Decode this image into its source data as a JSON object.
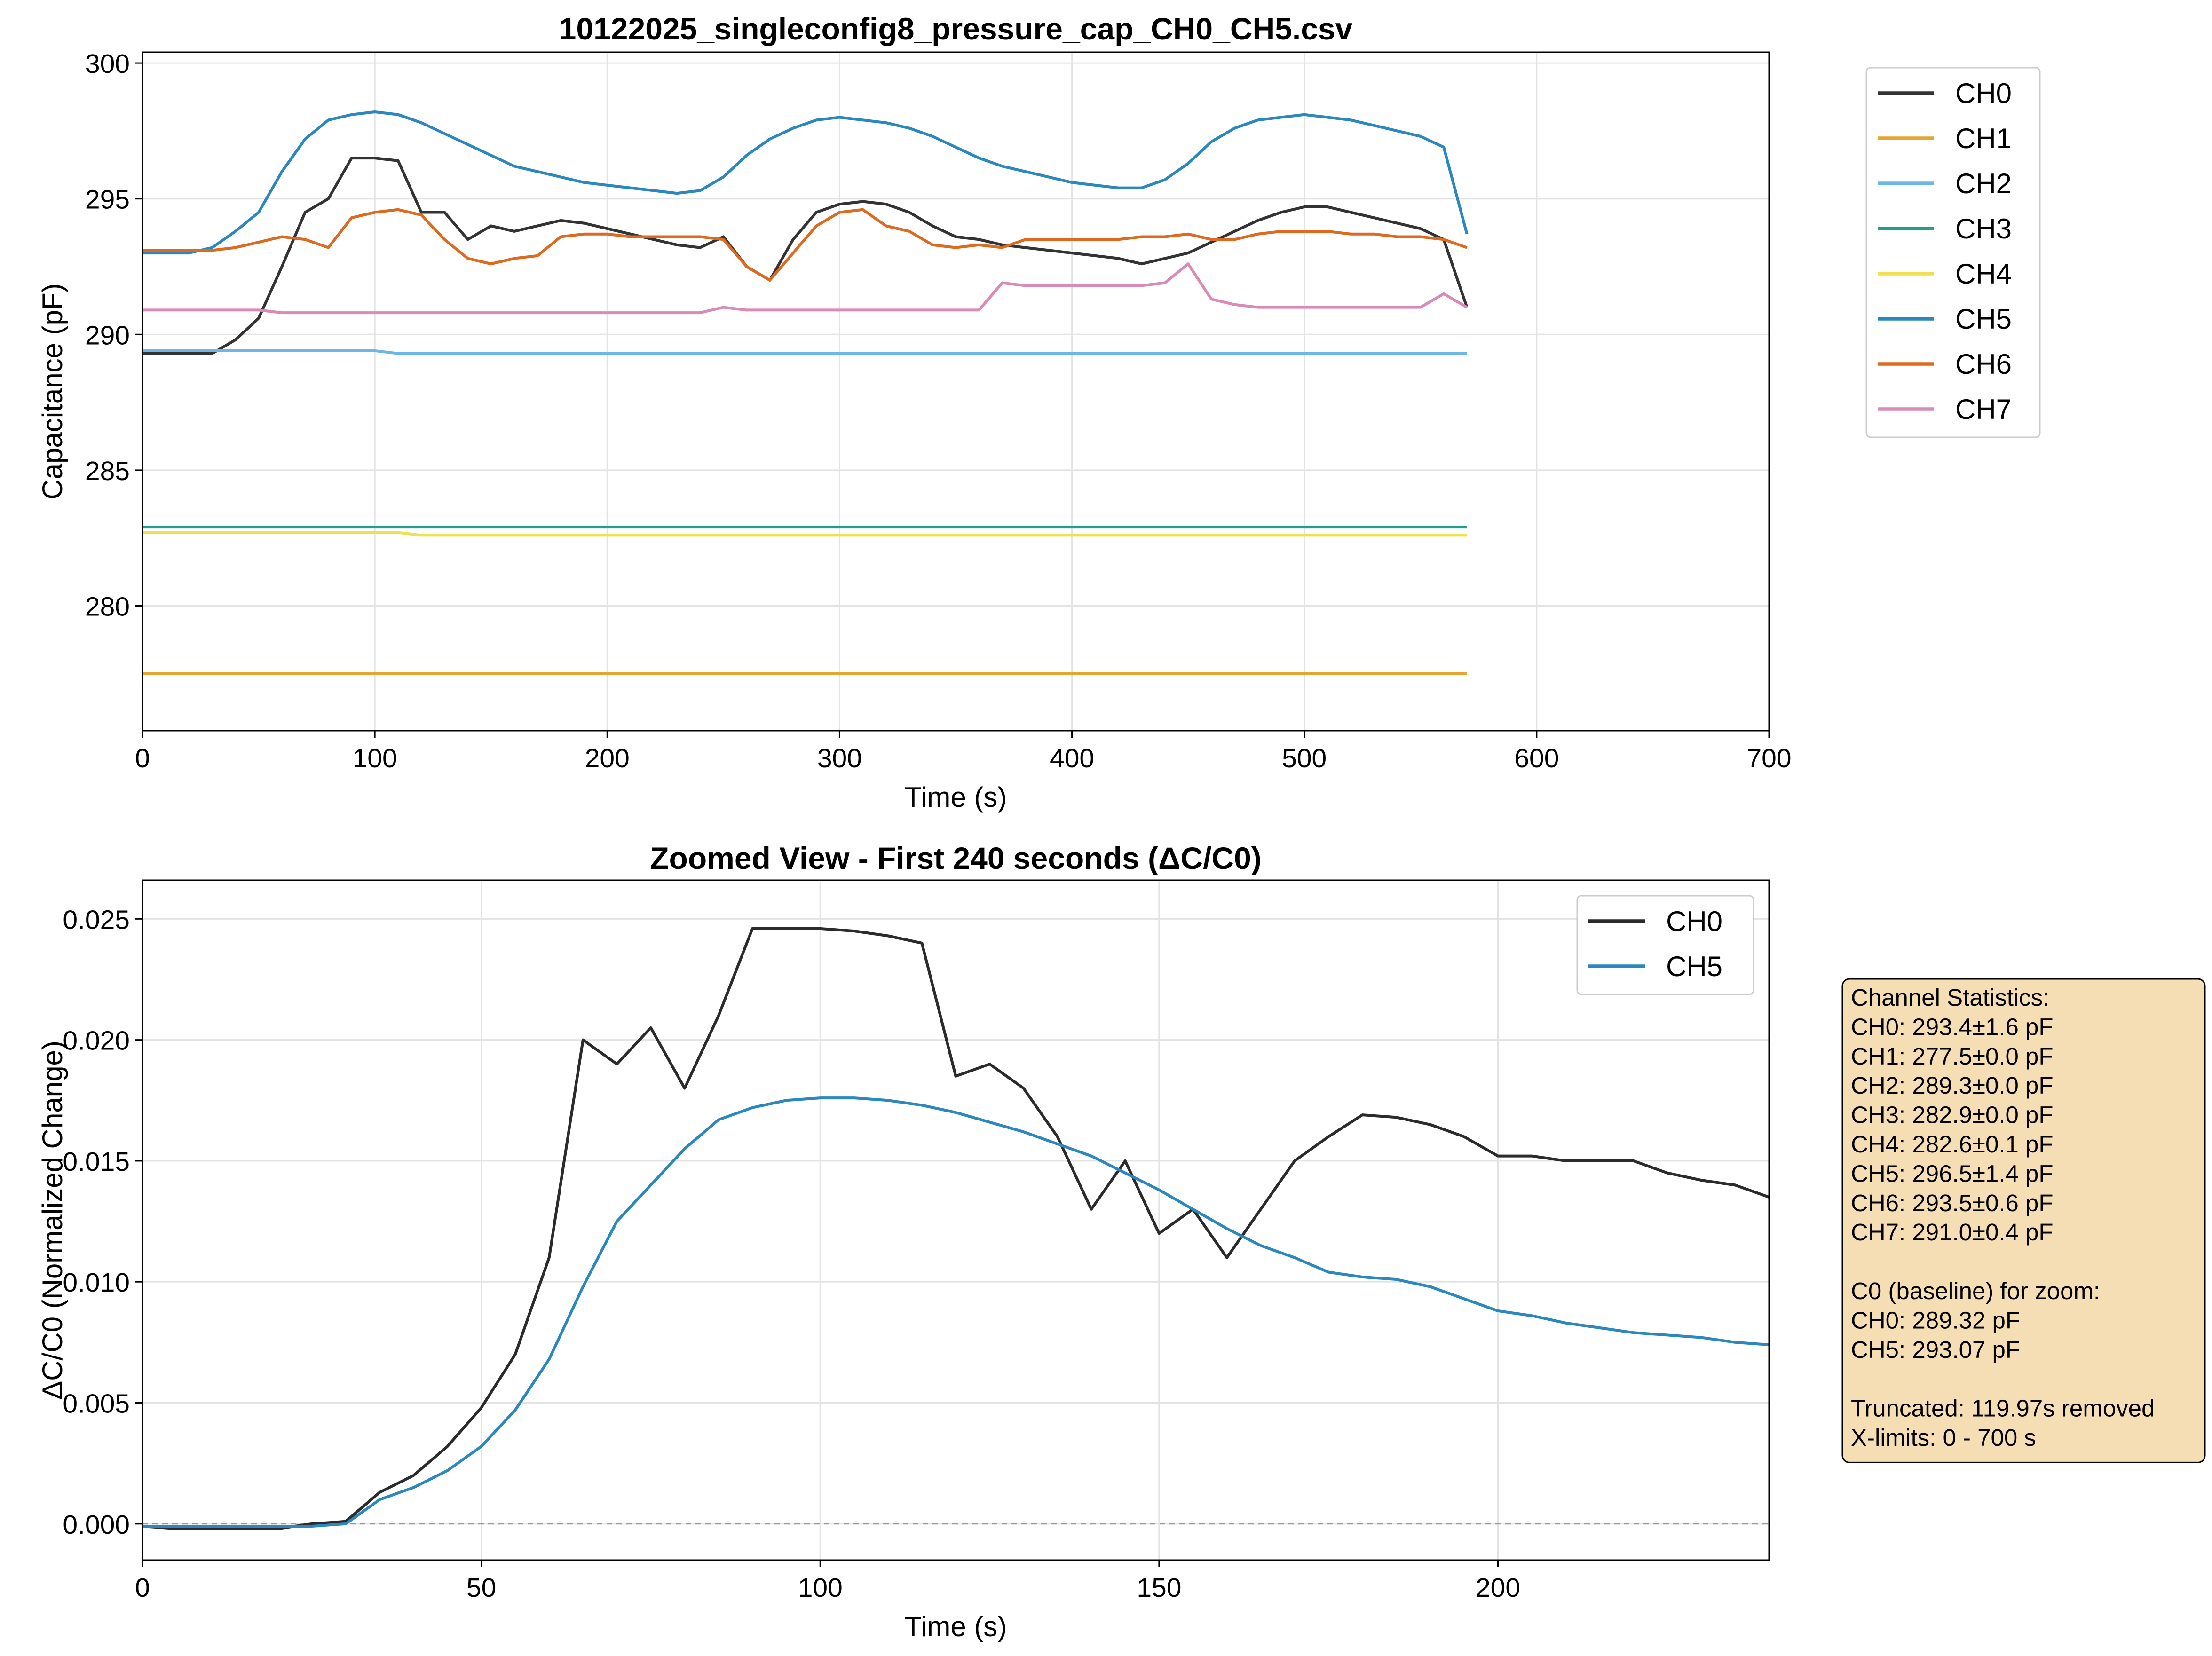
{
  "chart_data": [
    {
      "type": "line",
      "title": "10122025_singleconfig8_pressure_cap_CH0_CH5.csv",
      "xlabel": "Time (s)",
      "ylabel": "Capacitance (pF)",
      "xlim": [
        0,
        700
      ],
      "ylim": [
        275.4,
        300.4
      ],
      "xticks": [
        0,
        100,
        200,
        300,
        400,
        500,
        600,
        700
      ],
      "yticks": [
        280,
        285,
        290,
        295,
        300
      ],
      "grid": true,
      "legend": "outside upper right",
      "x": [
        0,
        10,
        20,
        30,
        40,
        50,
        60,
        70,
        80,
        90,
        100,
        110,
        120,
        130,
        140,
        150,
        160,
        170,
        180,
        190,
        200,
        210,
        220,
        230,
        240,
        250,
        260,
        270,
        280,
        290,
        300,
        310,
        320,
        330,
        340,
        350,
        360,
        370,
        380,
        390,
        400,
        410,
        420,
        430,
        440,
        450,
        460,
        470,
        480,
        490,
        500,
        510,
        520,
        530,
        540,
        550,
        560,
        570
      ],
      "series": [
        {
          "name": "CH0",
          "color": "#333333",
          "values": [
            289.3,
            289.3,
            289.3,
            289.3,
            289.8,
            290.6,
            292.5,
            294.5,
            295,
            296.5,
            296.5,
            296.4,
            294.5,
            294.5,
            293.5,
            294,
            293.8,
            294,
            294.2,
            294.1,
            293.9,
            293.7,
            293.5,
            293.3,
            293.2,
            293.6,
            292.5,
            292,
            293.5,
            294.5,
            294.8,
            294.9,
            294.8,
            294.5,
            294,
            293.6,
            293.5,
            293.3,
            293.2,
            293.1,
            293,
            292.9,
            292.8,
            292.6,
            292.8,
            293,
            293.4,
            293.8,
            294.2,
            294.5,
            294.7,
            294.7,
            294.5,
            294.3,
            294.1,
            293.9,
            293.5,
            291
          ]
        },
        {
          "name": "CH1",
          "color": "#e6a532",
          "values": [
            277.5,
            277.5,
            277.5,
            277.5,
            277.5,
            277.5,
            277.5,
            277.5,
            277.5,
            277.5,
            277.5,
            277.5,
            277.5,
            277.5,
            277.5,
            277.5,
            277.5,
            277.5,
            277.5,
            277.5,
            277.5,
            277.5,
            277.5,
            277.5,
            277.5,
            277.5,
            277.5,
            277.5,
            277.5,
            277.5,
            277.5,
            277.5,
            277.5,
            277.5,
            277.5,
            277.5,
            277.5,
            277.5,
            277.5,
            277.5,
            277.5,
            277.5,
            277.5,
            277.5,
            277.5,
            277.5,
            277.5,
            277.5,
            277.5,
            277.5,
            277.5,
            277.5,
            277.5,
            277.5,
            277.5,
            277.5,
            277.5,
            277.5
          ]
        },
        {
          "name": "CH2",
          "color": "#6bb8e8",
          "values": [
            289.4,
            289.4,
            289.4,
            289.4,
            289.4,
            289.4,
            289.4,
            289.4,
            289.4,
            289.4,
            289.4,
            289.3,
            289.3,
            289.3,
            289.3,
            289.3,
            289.3,
            289.3,
            289.3,
            289.3,
            289.3,
            289.3,
            289.3,
            289.3,
            289.3,
            289.3,
            289.3,
            289.3,
            289.3,
            289.3,
            289.3,
            289.3,
            289.3,
            289.3,
            289.3,
            289.3,
            289.3,
            289.3,
            289.3,
            289.3,
            289.3,
            289.3,
            289.3,
            289.3,
            289.3,
            289.3,
            289.3,
            289.3,
            289.3,
            289.3,
            289.3,
            289.3,
            289.3,
            289.3,
            289.3,
            289.3,
            289.3,
            289.3
          ]
        },
        {
          "name": "CH3",
          "color": "#1fa187",
          "values": [
            282.9,
            282.9,
            282.9,
            282.9,
            282.9,
            282.9,
            282.9,
            282.9,
            282.9,
            282.9,
            282.9,
            282.9,
            282.9,
            282.9,
            282.9,
            282.9,
            282.9,
            282.9,
            282.9,
            282.9,
            282.9,
            282.9,
            282.9,
            282.9,
            282.9,
            282.9,
            282.9,
            282.9,
            282.9,
            282.9,
            282.9,
            282.9,
            282.9,
            282.9,
            282.9,
            282.9,
            282.9,
            282.9,
            282.9,
            282.9,
            282.9,
            282.9,
            282.9,
            282.9,
            282.9,
            282.9,
            282.9,
            282.9,
            282.9,
            282.9,
            282.9,
            282.9,
            282.9,
            282.9,
            282.9,
            282.9,
            282.9,
            282.9
          ]
        },
        {
          "name": "CH4",
          "color": "#f0e050",
          "values": [
            282.7,
            282.7,
            282.7,
            282.7,
            282.7,
            282.7,
            282.7,
            282.7,
            282.7,
            282.7,
            282.7,
            282.7,
            282.6,
            282.6,
            282.6,
            282.6,
            282.6,
            282.6,
            282.6,
            282.6,
            282.6,
            282.6,
            282.6,
            282.6,
            282.6,
            282.6,
            282.6,
            282.6,
            282.6,
            282.6,
            282.6,
            282.6,
            282.6,
            282.6,
            282.6,
            282.6,
            282.6,
            282.6,
            282.6,
            282.6,
            282.6,
            282.6,
            282.6,
            282.6,
            282.6,
            282.6,
            282.6,
            282.6,
            282.6,
            282.6,
            282.6,
            282.6,
            282.6,
            282.6,
            282.6,
            282.6,
            282.6,
            282.6
          ]
        },
        {
          "name": "CH5",
          "color": "#2a88bf",
          "values": [
            293,
            293,
            293,
            293.2,
            293.8,
            294.5,
            296,
            297.2,
            297.9,
            298.1,
            298.2,
            298.1,
            297.8,
            297.4,
            297,
            296.6,
            296.2,
            296,
            295.8,
            295.6,
            295.5,
            295.4,
            295.3,
            295.2,
            295.3,
            295.8,
            296.6,
            297.2,
            297.6,
            297.9,
            298,
            297.9,
            297.8,
            297.6,
            297.3,
            296.9,
            296.5,
            296.2,
            296,
            295.8,
            295.6,
            295.5,
            295.4,
            295.4,
            295.7,
            296.3,
            297.1,
            297.6,
            297.9,
            298,
            298.1,
            298,
            297.9,
            297.7,
            297.5,
            297.3,
            296.9,
            293.7
          ]
        },
        {
          "name": "CH6",
          "color": "#dd6a1e",
          "values": [
            293.1,
            293.1,
            293.1,
            293.1,
            293.2,
            293.4,
            293.6,
            293.5,
            293.2,
            294.3,
            294.5,
            294.6,
            294.4,
            293.5,
            292.8,
            292.6,
            292.8,
            292.9,
            293.6,
            293.7,
            293.7,
            293.6,
            293.6,
            293.6,
            293.6,
            293.5,
            292.5,
            292,
            293,
            294,
            294.5,
            294.6,
            294,
            293.8,
            293.3,
            293.2,
            293.3,
            293.2,
            293.5,
            293.5,
            293.5,
            293.5,
            293.5,
            293.6,
            293.6,
            293.7,
            293.5,
            293.5,
            293.7,
            293.8,
            293.8,
            293.8,
            293.7,
            293.7,
            293.6,
            293.6,
            293.5,
            293.2
          ]
        },
        {
          "name": "CH7",
          "color": "#d98bb8",
          "values": [
            290.9,
            290.9,
            290.9,
            290.9,
            290.9,
            290.9,
            290.8,
            290.8,
            290.8,
            290.8,
            290.8,
            290.8,
            290.8,
            290.8,
            290.8,
            290.8,
            290.8,
            290.8,
            290.8,
            290.8,
            290.8,
            290.8,
            290.8,
            290.8,
            290.8,
            291,
            290.9,
            290.9,
            290.9,
            290.9,
            290.9,
            290.9,
            290.9,
            290.9,
            290.9,
            290.9,
            290.9,
            291.9,
            291.8,
            291.8,
            291.8,
            291.8,
            291.8,
            291.8,
            291.9,
            292.6,
            291.3,
            291.1,
            291,
            291,
            291,
            291,
            291,
            291,
            291,
            291,
            291.5,
            291
          ]
        }
      ]
    },
    {
      "type": "line",
      "title": "Zoomed View - First 240 seconds (ΔC/C0)",
      "xlabel": "Time (s)",
      "ylabel": "ΔC/C0 (Normalized Change)",
      "xlim": [
        0,
        240
      ],
      "ylim": [
        -0.0015,
        0.0266
      ],
      "xticks": [
        0,
        50,
        100,
        150,
        200
      ],
      "yticks": [
        {
          "value": 0,
          "label": "0.000"
        },
        {
          "value": 0.005,
          "label": "0.005"
        },
        {
          "value": 0.01,
          "label": "0.010"
        },
        {
          "value": 0.015,
          "label": "0.015"
        },
        {
          "value": 0.02,
          "label": "0.020"
        },
        {
          "value": 0.025,
          "label": "0.025"
        }
      ],
      "grid": true,
      "legend": "upper right",
      "hline": 0,
      "x": [
        0,
        5,
        10,
        15,
        20,
        25,
        30,
        35,
        40,
        45,
        50,
        55,
        60,
        65,
        70,
        75,
        80,
        85,
        90,
        95,
        100,
        105,
        110,
        115,
        120,
        125,
        130,
        135,
        140,
        145,
        150,
        155,
        160,
        165,
        170,
        175,
        180,
        185,
        190,
        195,
        200,
        205,
        210,
        215,
        220,
        225,
        230,
        235,
        240
      ],
      "series": [
        {
          "name": "CH0",
          "color": "#2b2b2b",
          "values": [
            -0.0001,
            -0.0002,
            -0.0002,
            -0.0002,
            -0.0002,
            0,
            0.0001,
            0.0013,
            0.002,
            0.0032,
            0.0048,
            0.007,
            0.011,
            0.02,
            0.019,
            0.0205,
            0.018,
            0.021,
            0.0246,
            0.0246,
            0.0246,
            0.0245,
            0.0243,
            0.024,
            0.0185,
            0.019,
            0.018,
            0.016,
            0.013,
            0.015,
            0.012,
            0.013,
            0.011,
            0.013,
            0.015,
            0.016,
            0.0169,
            0.0168,
            0.0165,
            0.016,
            0.0152,
            0.0152,
            0.015,
            0.015,
            0.015,
            0.0145,
            0.0142,
            0.014,
            0.0135
          ]
        },
        {
          "name": "CH5",
          "color": "#2a88bf",
          "values": [
            -0.0001,
            -0.0001,
            -0.0001,
            -0.0001,
            -0.0001,
            -0.0001,
            0,
            0.001,
            0.0015,
            0.0022,
            0.0032,
            0.0047,
            0.0068,
            0.0098,
            0.0125,
            0.014,
            0.0155,
            0.0167,
            0.0172,
            0.0175,
            0.0176,
            0.0176,
            0.0175,
            0.0173,
            0.017,
            0.0166,
            0.0162,
            0.0157,
            0.0152,
            0.0145,
            0.0138,
            0.013,
            0.0122,
            0.0115,
            0.011,
            0.0104,
            0.0102,
            0.0101,
            0.0098,
            0.0093,
            0.0088,
            0.0086,
            0.0083,
            0.0081,
            0.0079,
            0.0078,
            0.0077,
            0.0075,
            0.0074
          ]
        }
      ],
      "annotation": [
        [
          "Channel Statistics:",
          "CH0: 293.4±1.6 pF",
          "CH1: 277.5±0.0 pF",
          "CH2: 289.3±0.0 pF",
          "CH3: 282.9±0.0 pF",
          "CH4: 282.6±0.1 pF",
          "CH5: 296.5±1.4 pF",
          "CH6: 293.5±0.6 pF",
          "CH7: 291.0±0.4 pF"
        ],
        [
          "C0 (baseline) for zoom:",
          "CH0: 289.32 pF",
          "CH5: 293.07 pF"
        ],
        [
          "Truncated: 119.97s removed",
          "X-limits: 0 - 700 s"
        ]
      ]
    }
  ]
}
